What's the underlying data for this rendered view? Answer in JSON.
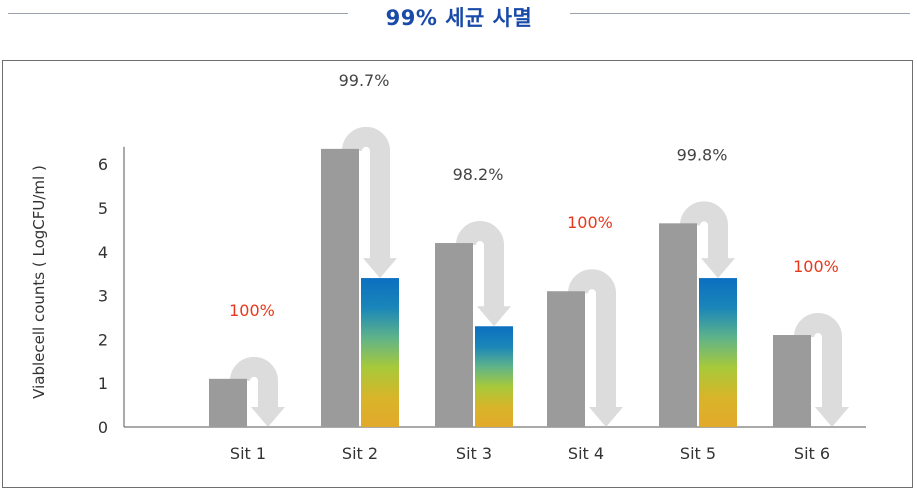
{
  "title": "99% 세균 사멸",
  "chart_data": {
    "type": "bar",
    "title": "99% 세균 사멸",
    "ylabel": "Viablecell counts ( LogCFU/ml )",
    "xlabel": "",
    "ylim": [
      0,
      6.3
    ],
    "yticks": [
      "0",
      "1",
      "2",
      "3",
      "4",
      "5",
      "6"
    ],
    "categories": [
      "Sit 1",
      "Sit 2",
      "Sit 3",
      "Sit 4",
      "Sit 5",
      "Sit 6"
    ],
    "series": [
      {
        "values": [
          1.1,
          6.35,
          4.2,
          3.1,
          4.65,
          2.1
        ]
      },
      {
        "values": [
          0,
          3.4,
          2.3,
          0,
          3.4,
          0
        ]
      }
    ],
    "reductions": [
      "100%",
      "99.7%",
      "98.2%",
      "100%",
      "99.8%",
      "100%"
    ],
    "colors": {
      "before": "#9b9b9b",
      "arrow": "#dcdcdc",
      "pct_full": "#e8381c",
      "pct_partial": "#444444",
      "gradient": [
        "#0b6fc0",
        "#1a86b9",
        "#5fb38a",
        "#a7c93a",
        "#d8b52a",
        "#e2a92a"
      ]
    }
  }
}
